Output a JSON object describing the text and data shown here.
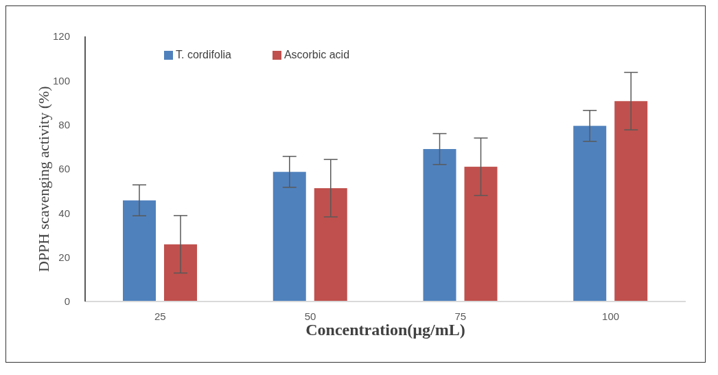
{
  "chart_data": {
    "type": "bar",
    "xlabel": "Concentration(µg/mL)",
    "ylabel": "DPPH scavenging activity (%)",
    "categories": [
      "25",
      "50",
      "75",
      "100"
    ],
    "series": [
      {
        "name": "T. cordifolia",
        "color": "#4f81bd",
        "values": [
          45.8,
          58.7,
          69.0,
          79.5
        ],
        "errors": [
          7,
          7,
          7,
          7
        ]
      },
      {
        "name": "Ascorbic acid",
        "color": "#c0504d",
        "values": [
          25.9,
          51.3,
          61.0,
          90.7
        ],
        "errors": [
          13,
          13,
          13,
          13
        ]
      }
    ],
    "ylim": [
      0,
      120
    ],
    "yticks": [
      0,
      20,
      40,
      60,
      80,
      100,
      120
    ],
    "grid": false,
    "legend": "top left"
  }
}
